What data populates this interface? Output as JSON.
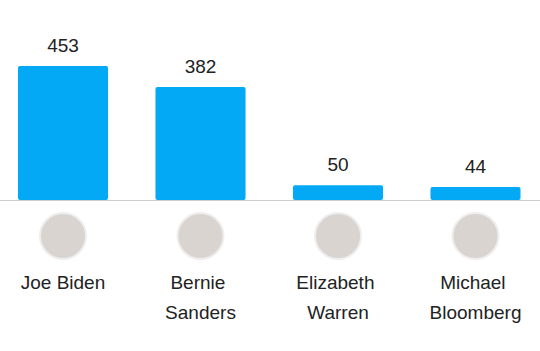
{
  "chart_data": {
    "type": "bar",
    "categories": [
      "Joe Biden",
      "Bernie Sanders",
      "Elizabeth Warren",
      "Michael Bloomberg"
    ],
    "values": [
      453,
      382,
      50,
      44
    ],
    "color": "#03a9f4",
    "data_labels": true,
    "tick_labels": "x"
  }
}
